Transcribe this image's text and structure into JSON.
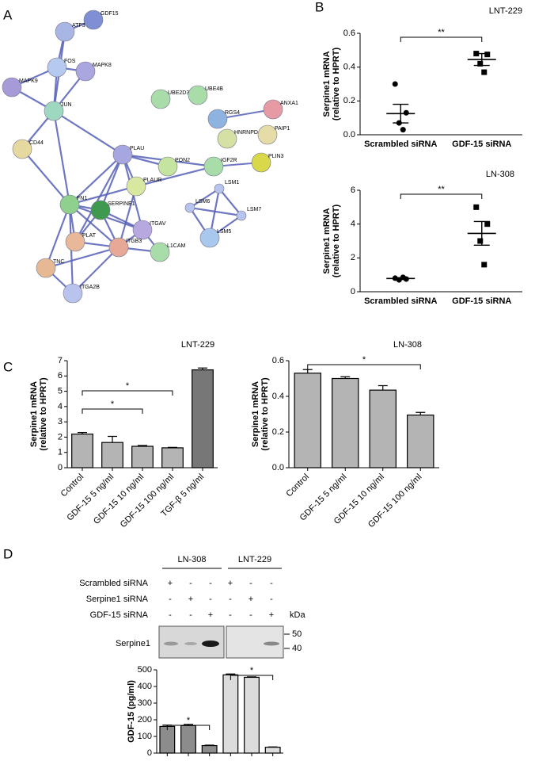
{
  "panel_labels": [
    "A",
    "B",
    "C",
    "D"
  ],
  "network": {
    "nodes": [
      "GDF15",
      "ATF3",
      "FOS",
      "MAPK8",
      "MAPK9",
      "JUN",
      "CD44",
      "UBE2D3",
      "UBE4B",
      "RGS4",
      "ANXA1",
      "PAIP1",
      "HNRNPD",
      "PON2",
      "PLAU",
      "IGF2R",
      "PLIN3",
      "PLAUR",
      "LSM1",
      "FN1",
      "SERPINE1",
      "LSM6",
      "LSM7",
      "ITGAV",
      "PLAT",
      "ITGB3",
      "LSM5",
      "TNC",
      "L1CAM",
      "ITGA2B"
    ]
  },
  "chart_data": [
    {
      "type": "dot",
      "title": "LNT-229",
      "categories": [
        "Scrambled siRNA",
        "GDF-15 siRNA"
      ],
      "points": [
        [
          0.3,
          0.13,
          0.07,
          0.03
        ],
        [
          0.48,
          0.475,
          0.42,
          0.37
        ]
      ],
      "mean": [
        0.125,
        0.445
      ],
      "sem": [
        0.055,
        0.035
      ],
      "ylabel": [
        "Serpine1 mRNA",
        "(relative to HPRT)"
      ],
      "ylim": [
        0,
        0.6
      ],
      "yticks": [
        {
          "value": 0,
          "label": "0.0"
        },
        {
          "value": 0.2,
          "label": "0.2"
        },
        {
          "value": 0.4,
          "label": "0.4"
        },
        {
          "value": 0.6,
          "label": "0.6"
        }
      ],
      "annotations": [
        {
          "label": "**"
        }
      ]
    },
    {
      "type": "dot",
      "title": "LN-308",
      "categories": [
        "Scrambled siRNA",
        "GDF-15 siRNA"
      ],
      "points": [
        [
          0.8,
          0.75,
          0.7,
          0.85
        ],
        [
          5.0,
          4.0,
          3.0,
          1.6
        ]
      ],
      "mean": [
        0.78,
        3.45
      ],
      "sem": [
        0.05,
        0.7
      ],
      "ylabel": [
        "Serpine1 mRNA",
        "(relative to HPRT)"
      ],
      "ylim": [
        0,
        6
      ],
      "yticks": [
        0,
        2,
        4,
        6
      ],
      "annotations": [
        {
          "label": "**"
        }
      ]
    },
    {
      "type": "bar",
      "title": "LNT-229",
      "categories": [
        "Control",
        "GDF-15 5 ng/ml",
        "GDF-15 10 ng/ml",
        "GDF-15 100 ng/ml",
        "TGF-β 5 ng/ml"
      ],
      "values": [
        2.2,
        1.65,
        1.4,
        1.3,
        6.4
      ],
      "errors": [
        0.1,
        0.4,
        0.05,
        0.03,
        0.12
      ],
      "colors": [
        "#b4b4b4",
        "#b4b4b4",
        "#b4b4b4",
        "#b4b4b4",
        "#777777"
      ],
      "ylabel": [
        "Serpine1 mRNA",
        "(relative to HPRT)"
      ],
      "ylim": [
        0,
        7
      ],
      "yticks": [
        0,
        1,
        2,
        3,
        4,
        5,
        6,
        7
      ],
      "annotations": [
        {
          "label": "*"
        },
        {
          "label": "*"
        }
      ]
    },
    {
      "type": "bar",
      "title": "LN-308",
      "categories": [
        "Control",
        "GDF-15 5 ng/ml",
        "GDF-15 10 ng/ml",
        "GDF-15 100 ng/ml"
      ],
      "values": [
        0.53,
        0.5,
        0.435,
        0.295
      ],
      "errors": [
        0.02,
        0.01,
        0.025,
        0.015
      ],
      "colors": [
        "#b4b4b4",
        "#b4b4b4",
        "#b4b4b4",
        "#b4b4b4"
      ],
      "ylabel": [
        "Serpine1 mRNA",
        "(relative to HPRT)"
      ],
      "ylim": [
        0,
        0.6
      ],
      "yticks": [
        {
          "value": 0,
          "label": "0.0"
        },
        {
          "value": 0.2,
          "label": "0.2"
        },
        {
          "value": 0.4,
          "label": "0.4"
        },
        {
          "value": 0.6,
          "label": "0.6"
        }
      ],
      "annotations": [
        {
          "label": "*"
        }
      ]
    },
    {
      "type": "bar",
      "categories": [
        null,
        null,
        null,
        null,
        null,
        null
      ],
      "values": [
        160,
        165,
        45,
        470,
        455,
        35
      ],
      "errors": [
        8,
        8,
        3,
        5,
        3,
        2
      ],
      "colors": [
        "#8c8c8c",
        "#8c8c8c",
        "#8c8c8c",
        "#dcdcdc",
        "#dcdcdc",
        "#dcdcdc"
      ],
      "ylabel": [
        "GDF-15 (pg/ml)"
      ],
      "ylim": [
        0,
        500
      ],
      "yticks": [
        0,
        100,
        200,
        300,
        400,
        500
      ],
      "annotations": [
        {
          "label": "*"
        },
        {
          "label": "*"
        }
      ]
    }
  ],
  "blot": {
    "groups": [
      "LN-308",
      "LNT-229"
    ],
    "rows": [
      {
        "label": "Scrambled siRNA",
        "marks": [
          "+",
          "-",
          "-",
          "+",
          "-",
          "-"
        ]
      },
      {
        "label": "Serpine1 siRNA",
        "marks": [
          "-",
          "+",
          "-",
          "-",
          "+",
          "-"
        ]
      },
      {
        "label": "GDF-15 siRNA",
        "marks": [
          "-",
          "-",
          "+",
          "-",
          "-",
          "+"
        ]
      }
    ],
    "unit": "kDa",
    "band_label": "Serpine1",
    "markers": [
      "50",
      "40"
    ]
  }
}
